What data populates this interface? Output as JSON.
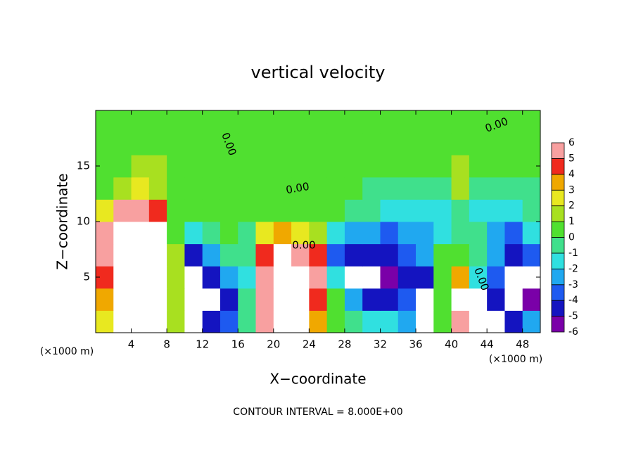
{
  "chart_data": {
    "type": "heatmap",
    "title": "vertical velocity",
    "x_label": "X−coordinate",
    "y_label": "Z−coordinate",
    "x_unit": "(×1000 m)",
    "y_unit": "(×1000 m)",
    "footer": "CONTOUR INTERVAL = 8.000E+00",
    "contour_labels": [
      "0.00",
      "0.00",
      "0.00",
      "0.00",
      "0.00"
    ],
    "xlim": [
      0,
      50
    ],
    "ylim": [
      0,
      20
    ],
    "xticks": [
      4,
      8,
      12,
      16,
      20,
      24,
      28,
      32,
      36,
      40,
      44,
      48
    ],
    "yticks": [
      5,
      10,
      15
    ],
    "levels": [
      -6,
      -5,
      -4,
      -3,
      -2,
      -1,
      0,
      1,
      2,
      3,
      4,
      5,
      6
    ],
    "colors": [
      "#7a00a8",
      "#1414c0",
      "#1e5af0",
      "#20a8f0",
      "#30e0e0",
      "#40e08c",
      "#50e030",
      "#a8e020",
      "#e8e820",
      "#f0a800",
      "#f02a1e",
      "#f8a0a0"
    ],
    "x": [
      1,
      3,
      5,
      7,
      9,
      11,
      13,
      15,
      17,
      19,
      21,
      23,
      25,
      27,
      29,
      31,
      33,
      35,
      37,
      39,
      41,
      43,
      45,
      47,
      49
    ],
    "z": [
      1,
      3,
      5,
      7,
      9,
      11,
      13,
      15,
      17,
      19
    ],
    "values": [
      [
        2.5,
        8,
        8,
        7,
        1,
        -8,
        -5,
        -4,
        -1,
        5,
        8,
        8,
        3,
        0.5,
        -1,
        -2,
        -2,
        -3,
        -8,
        0.5,
        5,
        8,
        -7,
        -5,
        -3
      ],
      [
        3,
        8,
        8,
        8,
        1,
        -8,
        -8,
        -5,
        -1,
        5,
        8,
        8,
        4,
        0,
        -3,
        -5,
        -5,
        -4,
        -7,
        0.5,
        7,
        7,
        -5,
        -8,
        -6
      ],
      [
        4,
        8,
        8,
        8,
        1,
        -8,
        -5,
        -3,
        -2,
        5,
        8,
        8,
        5,
        -2,
        -8,
        -8,
        -6,
        -5,
        -5,
        0.5,
        3,
        -2,
        -4,
        -8,
        -7
      ],
      [
        5,
        8,
        8,
        8,
        1,
        -5,
        -3,
        -1,
        -1,
        4,
        7,
        6,
        4,
        -4,
        -5,
        -5,
        -5,
        -4,
        -3,
        0.5,
        0.5,
        -1,
        -3,
        -5,
        -4
      ],
      [
        5,
        8,
        8,
        7,
        0.5,
        -2,
        -0.5,
        0.5,
        -0.5,
        2,
        3,
        2,
        1,
        -2,
        -3,
        -3,
        -4,
        -3,
        -3,
        -2,
        -0.5,
        -1,
        -3,
        -4,
        -2
      ],
      [
        2,
        5,
        6,
        4,
        0.5,
        0.5,
        0.5,
        0.5,
        0.5,
        0.5,
        0.5,
        0.5,
        0.5,
        0.5,
        -1,
        -1,
        -2,
        -2,
        -2,
        -2,
        -1,
        -2,
        -2,
        -2,
        -1
      ],
      [
        0.5,
        1,
        2,
        1,
        0.5,
        0.5,
        0.5,
        0.5,
        0.5,
        0.5,
        0.5,
        0.5,
        0.5,
        0.5,
        0.5,
        -0.5,
        -1,
        -1,
        -1,
        -1,
        1.5,
        -1,
        -1,
        -0.5,
        -0.5
      ],
      [
        0.5,
        0.5,
        1,
        1,
        0.5,
        0.5,
        0.5,
        0.5,
        0.5,
        0.5,
        0.5,
        0.5,
        0.5,
        0.5,
        0.5,
        0.5,
        0.5,
        0.5,
        0.5,
        0.5,
        1.5,
        0.5,
        0.5,
        0.5,
        0.5
      ],
      [
        0.5,
        0.5,
        0.5,
        0.5,
        0.5,
        0.5,
        0.5,
        0.5,
        0.5,
        0.5,
        0.5,
        0.5,
        0.5,
        0.5,
        0.5,
        0.5,
        0.5,
        0.5,
        0.5,
        0.5,
        0.5,
        0.5,
        0.5,
        0.5,
        0.5
      ],
      [
        0.5,
        0.5,
        0.5,
        0.5,
        0.5,
        0.5,
        0.5,
        0.5,
        0.5,
        0.5,
        0.5,
        0.5,
        0.5,
        0.5,
        0.5,
        0.5,
        0.5,
        0.5,
        0.5,
        0.5,
        0.5,
        0.5,
        0.5,
        0.5,
        0.5
      ]
    ]
  }
}
